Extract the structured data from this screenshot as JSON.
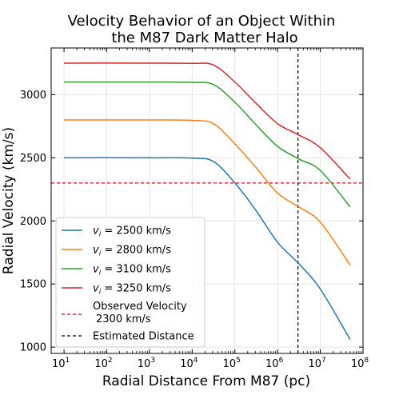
{
  "chart_data": {
    "type": "line",
    "title": [
      "Velocity Behavior of an Object Within",
      "the M87 Dark Matter Halo"
    ],
    "xlabel": "Radial Distance From M87 (pc)",
    "ylabel": "Radial Velocity (km/s)",
    "x_scale": "log",
    "xlim": [
      5,
      100000000
    ],
    "ylim": [
      950,
      3370
    ],
    "x_ticks": [
      {
        "value": 10,
        "base": "10",
        "exp": "1"
      },
      {
        "value": 100,
        "base": "10",
        "exp": "2"
      },
      {
        "value": 1000,
        "base": "10",
        "exp": "3"
      },
      {
        "value": 10000,
        "base": "10",
        "exp": "4"
      },
      {
        "value": 100000,
        "base": "10",
        "exp": "5"
      },
      {
        "value": 1000000,
        "base": "10",
        "exp": "6"
      },
      {
        "value": 10000000,
        "base": "10",
        "exp": "7"
      },
      {
        "value": 100000000,
        "base": "10",
        "exp": "8"
      }
    ],
    "y_ticks": [
      1000,
      1500,
      2000,
      2500,
      3000
    ],
    "grid": true,
    "legend_position": "lower-left",
    "series": [
      {
        "legend_var": "v",
        "legend_sub": "i",
        "legend_rest": " = 2500 km/s",
        "color": "#1f77b4",
        "points": [
          [
            10,
            2500
          ],
          [
            1000,
            2500
          ],
          [
            10000,
            2497
          ],
          [
            31600,
            2470
          ],
          [
            100000,
            2300
          ],
          [
            316000,
            2080
          ],
          [
            1000000,
            1830
          ],
          [
            3160000,
            1660
          ],
          [
            10000000,
            1460
          ],
          [
            50000000,
            1060
          ]
        ]
      },
      {
        "legend_var": "v",
        "legend_sub": "i",
        "legend_rest": " = 2800 km/s",
        "color": "#ff7f0e",
        "points": [
          [
            10,
            2800
          ],
          [
            1000,
            2800
          ],
          [
            10000,
            2797
          ],
          [
            31600,
            2770
          ],
          [
            100000,
            2610
          ],
          [
            316000,
            2420
          ],
          [
            1000000,
            2220
          ],
          [
            3160000,
            2110
          ],
          [
            10000000,
            1990
          ],
          [
            50000000,
            1650
          ]
        ]
      },
      {
        "legend_var": "v",
        "legend_sub": "i",
        "legend_rest": " = 3100 km/s",
        "color": "#2ca02c",
        "points": [
          [
            10,
            3100
          ],
          [
            1000,
            3100
          ],
          [
            10000,
            3098
          ],
          [
            31600,
            3080
          ],
          [
            100000,
            2940
          ],
          [
            316000,
            2760
          ],
          [
            1000000,
            2590
          ],
          [
            3160000,
            2490
          ],
          [
            10000000,
            2400
          ],
          [
            50000000,
            2110
          ]
        ]
      },
      {
        "legend_var": "v",
        "legend_sub": "i",
        "legend_rest": " = 3250 km/s",
        "color": "#d62728",
        "points": [
          [
            10,
            3250
          ],
          [
            1000,
            3250
          ],
          [
            10000,
            3248
          ],
          [
            31600,
            3235
          ],
          [
            100000,
            3100
          ],
          [
            316000,
            2930
          ],
          [
            1000000,
            2770
          ],
          [
            3160000,
            2680
          ],
          [
            10000000,
            2580
          ],
          [
            50000000,
            2330
          ]
        ]
      }
    ],
    "reference_lines": [
      {
        "orientation": "horizontal",
        "value": 2300,
        "color": "#e3001b",
        "legend": [
          "Observed Velocity",
          "2300 km/s"
        ]
      },
      {
        "orientation": "vertical",
        "value": 3000000,
        "color": "#000000",
        "legend": [
          "Estimated Distance"
        ]
      }
    ]
  }
}
